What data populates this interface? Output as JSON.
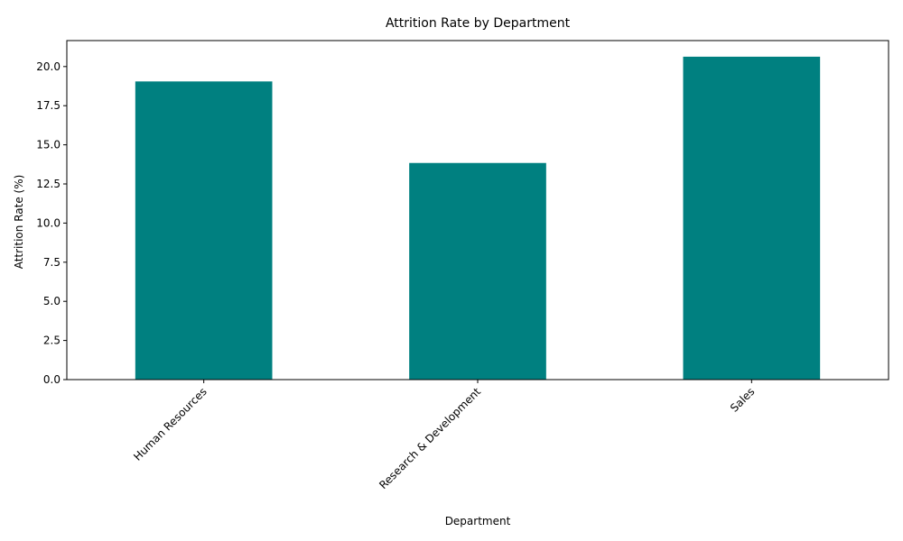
{
  "chart_data": {
    "type": "bar",
    "title": "Attrition Rate by Department",
    "xlabel": "Department",
    "ylabel": "Attrition Rate (%)",
    "categories": [
      "Human Resources",
      "Research & Development",
      "Sales"
    ],
    "values": [
      19.05,
      13.84,
      20.63
    ],
    "ylim": [
      0,
      21.66
    ],
    "yticks": [
      "0.0",
      "2.5",
      "5.0",
      "7.5",
      "10.0",
      "12.5",
      "15.0",
      "17.5",
      "20.0"
    ],
    "bar_color": "#008080",
    "grid": false,
    "legend": "none",
    "x_tick_rotation_deg": 45
  }
}
